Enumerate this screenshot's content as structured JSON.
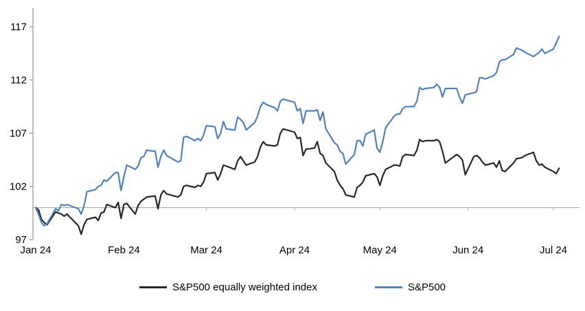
{
  "chart_data": {
    "type": "line",
    "title": "",
    "xlabel": "",
    "ylabel": "",
    "grid": false,
    "background": "#ffffff",
    "y_axis": {
      "ticks": [
        97,
        102,
        107,
        112,
        117
      ],
      "min": 97,
      "max": 117,
      "baseline_value": 100
    },
    "x_axis": {
      "tick_labels": [
        "Jan 24",
        "Feb 24",
        "Mar 24",
        "Apr 24",
        "May 24",
        "Jun 24",
        "Jul 24"
      ],
      "tick_dates": [
        "2024-01-01",
        "2024-02-01",
        "2024-03-01",
        "2024-04-01",
        "2024-05-01",
        "2024-06-01",
        "2024-07-01"
      ],
      "start_date": "2024-01-01",
      "end_date": "2024-07-03"
    },
    "dates": [
      "2024-01-01",
      "2024-01-02",
      "2024-01-03",
      "2024-01-04",
      "2024-01-05",
      "2024-01-08",
      "2024-01-09",
      "2024-01-10",
      "2024-01-11",
      "2024-01-12",
      "2024-01-16",
      "2024-01-17",
      "2024-01-18",
      "2024-01-19",
      "2024-01-22",
      "2024-01-23",
      "2024-01-24",
      "2024-01-25",
      "2024-01-26",
      "2024-01-29",
      "2024-01-30",
      "2024-01-31",
      "2024-02-01",
      "2024-02-02",
      "2024-02-05",
      "2024-02-06",
      "2024-02-07",
      "2024-02-08",
      "2024-02-09",
      "2024-02-12",
      "2024-02-13",
      "2024-02-14",
      "2024-02-15",
      "2024-02-16",
      "2024-02-20",
      "2024-02-21",
      "2024-02-22",
      "2024-02-23",
      "2024-02-26",
      "2024-02-27",
      "2024-02-28",
      "2024-02-29",
      "2024-03-01",
      "2024-03-04",
      "2024-03-05",
      "2024-03-06",
      "2024-03-07",
      "2024-03-08",
      "2024-03-11",
      "2024-03-12",
      "2024-03-13",
      "2024-03-14",
      "2024-03-15",
      "2024-03-18",
      "2024-03-19",
      "2024-03-20",
      "2024-03-21",
      "2024-03-22",
      "2024-03-25",
      "2024-03-26",
      "2024-03-27",
      "2024-03-28",
      "2024-04-01",
      "2024-04-02",
      "2024-04-03",
      "2024-04-04",
      "2024-04-05",
      "2024-04-08",
      "2024-04-09",
      "2024-04-10",
      "2024-04-11",
      "2024-04-12",
      "2024-04-15",
      "2024-04-16",
      "2024-04-17",
      "2024-04-18",
      "2024-04-19",
      "2024-04-22",
      "2024-04-23",
      "2024-04-24",
      "2024-04-25",
      "2024-04-26",
      "2024-04-29",
      "2024-04-30",
      "2024-05-01",
      "2024-05-02",
      "2024-05-03",
      "2024-05-06",
      "2024-05-07",
      "2024-05-08",
      "2024-05-09",
      "2024-05-10",
      "2024-05-13",
      "2024-05-14",
      "2024-05-15",
      "2024-05-16",
      "2024-05-17",
      "2024-05-20",
      "2024-05-21",
      "2024-05-22",
      "2024-05-23",
      "2024-05-24",
      "2024-05-28",
      "2024-05-29",
      "2024-05-30",
      "2024-05-31",
      "2024-06-03",
      "2024-06-04",
      "2024-06-05",
      "2024-06-06",
      "2024-06-07",
      "2024-06-10",
      "2024-06-11",
      "2024-06-12",
      "2024-06-13",
      "2024-06-14",
      "2024-06-17",
      "2024-06-18",
      "2024-06-20",
      "2024-06-21",
      "2024-06-24",
      "2024-06-25",
      "2024-06-26",
      "2024-06-27",
      "2024-06-28",
      "2024-07-01",
      "2024-07-02",
      "2024-07-03"
    ],
    "series": [
      {
        "name": "S&P500 equally weighted index",
        "color": "#262626",
        "values": [
          100.0,
          99.8,
          98.9,
          98.6,
          98.4,
          99.6,
          99.5,
          99.4,
          99.2,
          99.4,
          98.3,
          97.5,
          98.4,
          98.9,
          99.1,
          98.8,
          99.5,
          99.6,
          100.3,
          100.0,
          100.5,
          99.0,
          100.3,
          100.4,
          99.4,
          100.2,
          100.6,
          100.8,
          101.0,
          101.1,
          99.9,
          101.2,
          101.6,
          101.3,
          101.0,
          101.2,
          102.0,
          102.1,
          101.9,
          102.1,
          102.0,
          102.4,
          103.2,
          103.3,
          102.6,
          103.2,
          104.0,
          103.9,
          103.6,
          104.4,
          104.8,
          104.4,
          104.0,
          104.3,
          104.8,
          105.7,
          106.2,
          105.9,
          105.8,
          105.9,
          107.0,
          107.4,
          107.1,
          106.5,
          106.6,
          104.9,
          105.5,
          105.6,
          106.2,
          105.1,
          104.9,
          104.2,
          103.4,
          102.6,
          102.1,
          101.8,
          101.2,
          101.0,
          101.9,
          102.1,
          102.4,
          103.0,
          103.2,
          102.9,
          102.1,
          103.0,
          103.6,
          104.0,
          104.0,
          103.9,
          104.8,
          105.0,
          104.9,
          105.4,
          106.4,
          106.2,
          106.3,
          106.3,
          106.4,
          106.2,
          105.3,
          104.2,
          105.0,
          104.8,
          104.5,
          103.1,
          104.8,
          104.9,
          104.7,
          104.3,
          104.0,
          104.2,
          103.8,
          104.4,
          103.5,
          103.4,
          104.2,
          104.6,
          104.7,
          104.9,
          105.2,
          104.4,
          104.0,
          104.1,
          103.8,
          103.4,
          103.2,
          103.7
        ]
      },
      {
        "name": "S&P500",
        "color": "#4f81bd",
        "values": [
          100.0,
          99.4,
          98.6,
          98.3,
          98.5,
          99.9,
          99.7,
          100.3,
          100.2,
          100.3,
          99.9,
          99.4,
          100.2,
          101.5,
          101.7,
          102.0,
          102.1,
          102.6,
          102.5,
          103.3,
          103.3,
          101.6,
          102.9,
          104.0,
          103.6,
          103.9,
          104.7,
          104.8,
          105.4,
          105.3,
          103.8,
          104.8,
          105.4,
          104.9,
          104.3,
          104.4,
          106.6,
          106.7,
          106.3,
          106.5,
          106.3,
          106.8,
          107.7,
          107.6,
          106.5,
          107.0,
          108.1,
          107.4,
          107.3,
          108.5,
          108.3,
          108.0,
          107.3,
          108.0,
          108.6,
          109.5,
          109.9,
          109.7,
          109.4,
          109.1,
          110.0,
          110.2,
          109.9,
          109.1,
          109.3,
          107.9,
          109.1,
          109.1,
          109.2,
          108.2,
          109.0,
          107.4,
          106.1,
          105.9,
          105.3,
          105.1,
          104.1,
          105.0,
          106.3,
          106.3,
          105.8,
          106.9,
          107.3,
          105.6,
          105.2,
          106.2,
          107.5,
          108.6,
          108.8,
          108.8,
          109.3,
          109.5,
          109.5,
          110.0,
          111.3,
          111.1,
          111.2,
          111.3,
          111.6,
          111.3,
          110.4,
          111.2,
          111.2,
          110.4,
          109.8,
          110.6,
          110.8,
          110.9,
          112.2,
          112.2,
          112.1,
          112.4,
          112.7,
          113.7,
          113.9,
          113.9,
          114.4,
          115.0,
          114.8,
          114.6,
          114.2,
          114.4,
          114.6,
          114.9,
          114.5,
          114.9,
          115.5,
          116.1
        ]
      }
    ],
    "legend": {
      "position": "bottom",
      "entries": [
        "S&P500 equally weighted index",
        "S&P500"
      ]
    }
  },
  "colors": {
    "axis": "#7f7f7f",
    "baseline": "#a6a6a6",
    "tick_text": "#000000",
    "background": "#ffffff"
  }
}
